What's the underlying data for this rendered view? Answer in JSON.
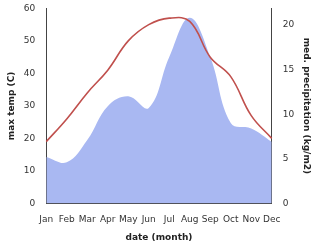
{
  "chart_data": {
    "type": "line",
    "x_label": "date (month)",
    "y_label": "max temp (C)",
    "y2_label": "med. precipitation (kg/m2)",
    "categories": [
      "Jan",
      "Feb",
      "Mar",
      "Apr",
      "May",
      "Jun",
      "Jul",
      "Aug",
      "Sep",
      "Oct",
      "Nov",
      "Dec"
    ],
    "series": [
      {
        "name": "max temp",
        "type": "line",
        "color": "#c0504d",
        "axis": "y",
        "values": [
          19,
          26,
          34,
          41,
          50,
          55,
          57,
          56,
          45,
          39,
          27,
          20
        ]
      },
      {
        "name": "med. precipitation",
        "type": "area",
        "color": "#a9b8f2",
        "axis": "y2",
        "values": [
          5.2,
          4.6,
          7.1,
          10.9,
          12,
          10.7,
          16.4,
          20.8,
          16.4,
          9,
          8.4,
          6.9
        ]
      }
    ],
    "ylim": [
      0,
      60
    ],
    "yticks": [
      0,
      10,
      20,
      30,
      40,
      50,
      60
    ],
    "y2lim": [
      0,
      21.86
    ],
    "y2ticks": [
      0,
      5,
      10,
      15,
      20
    ],
    "grid": false
  }
}
